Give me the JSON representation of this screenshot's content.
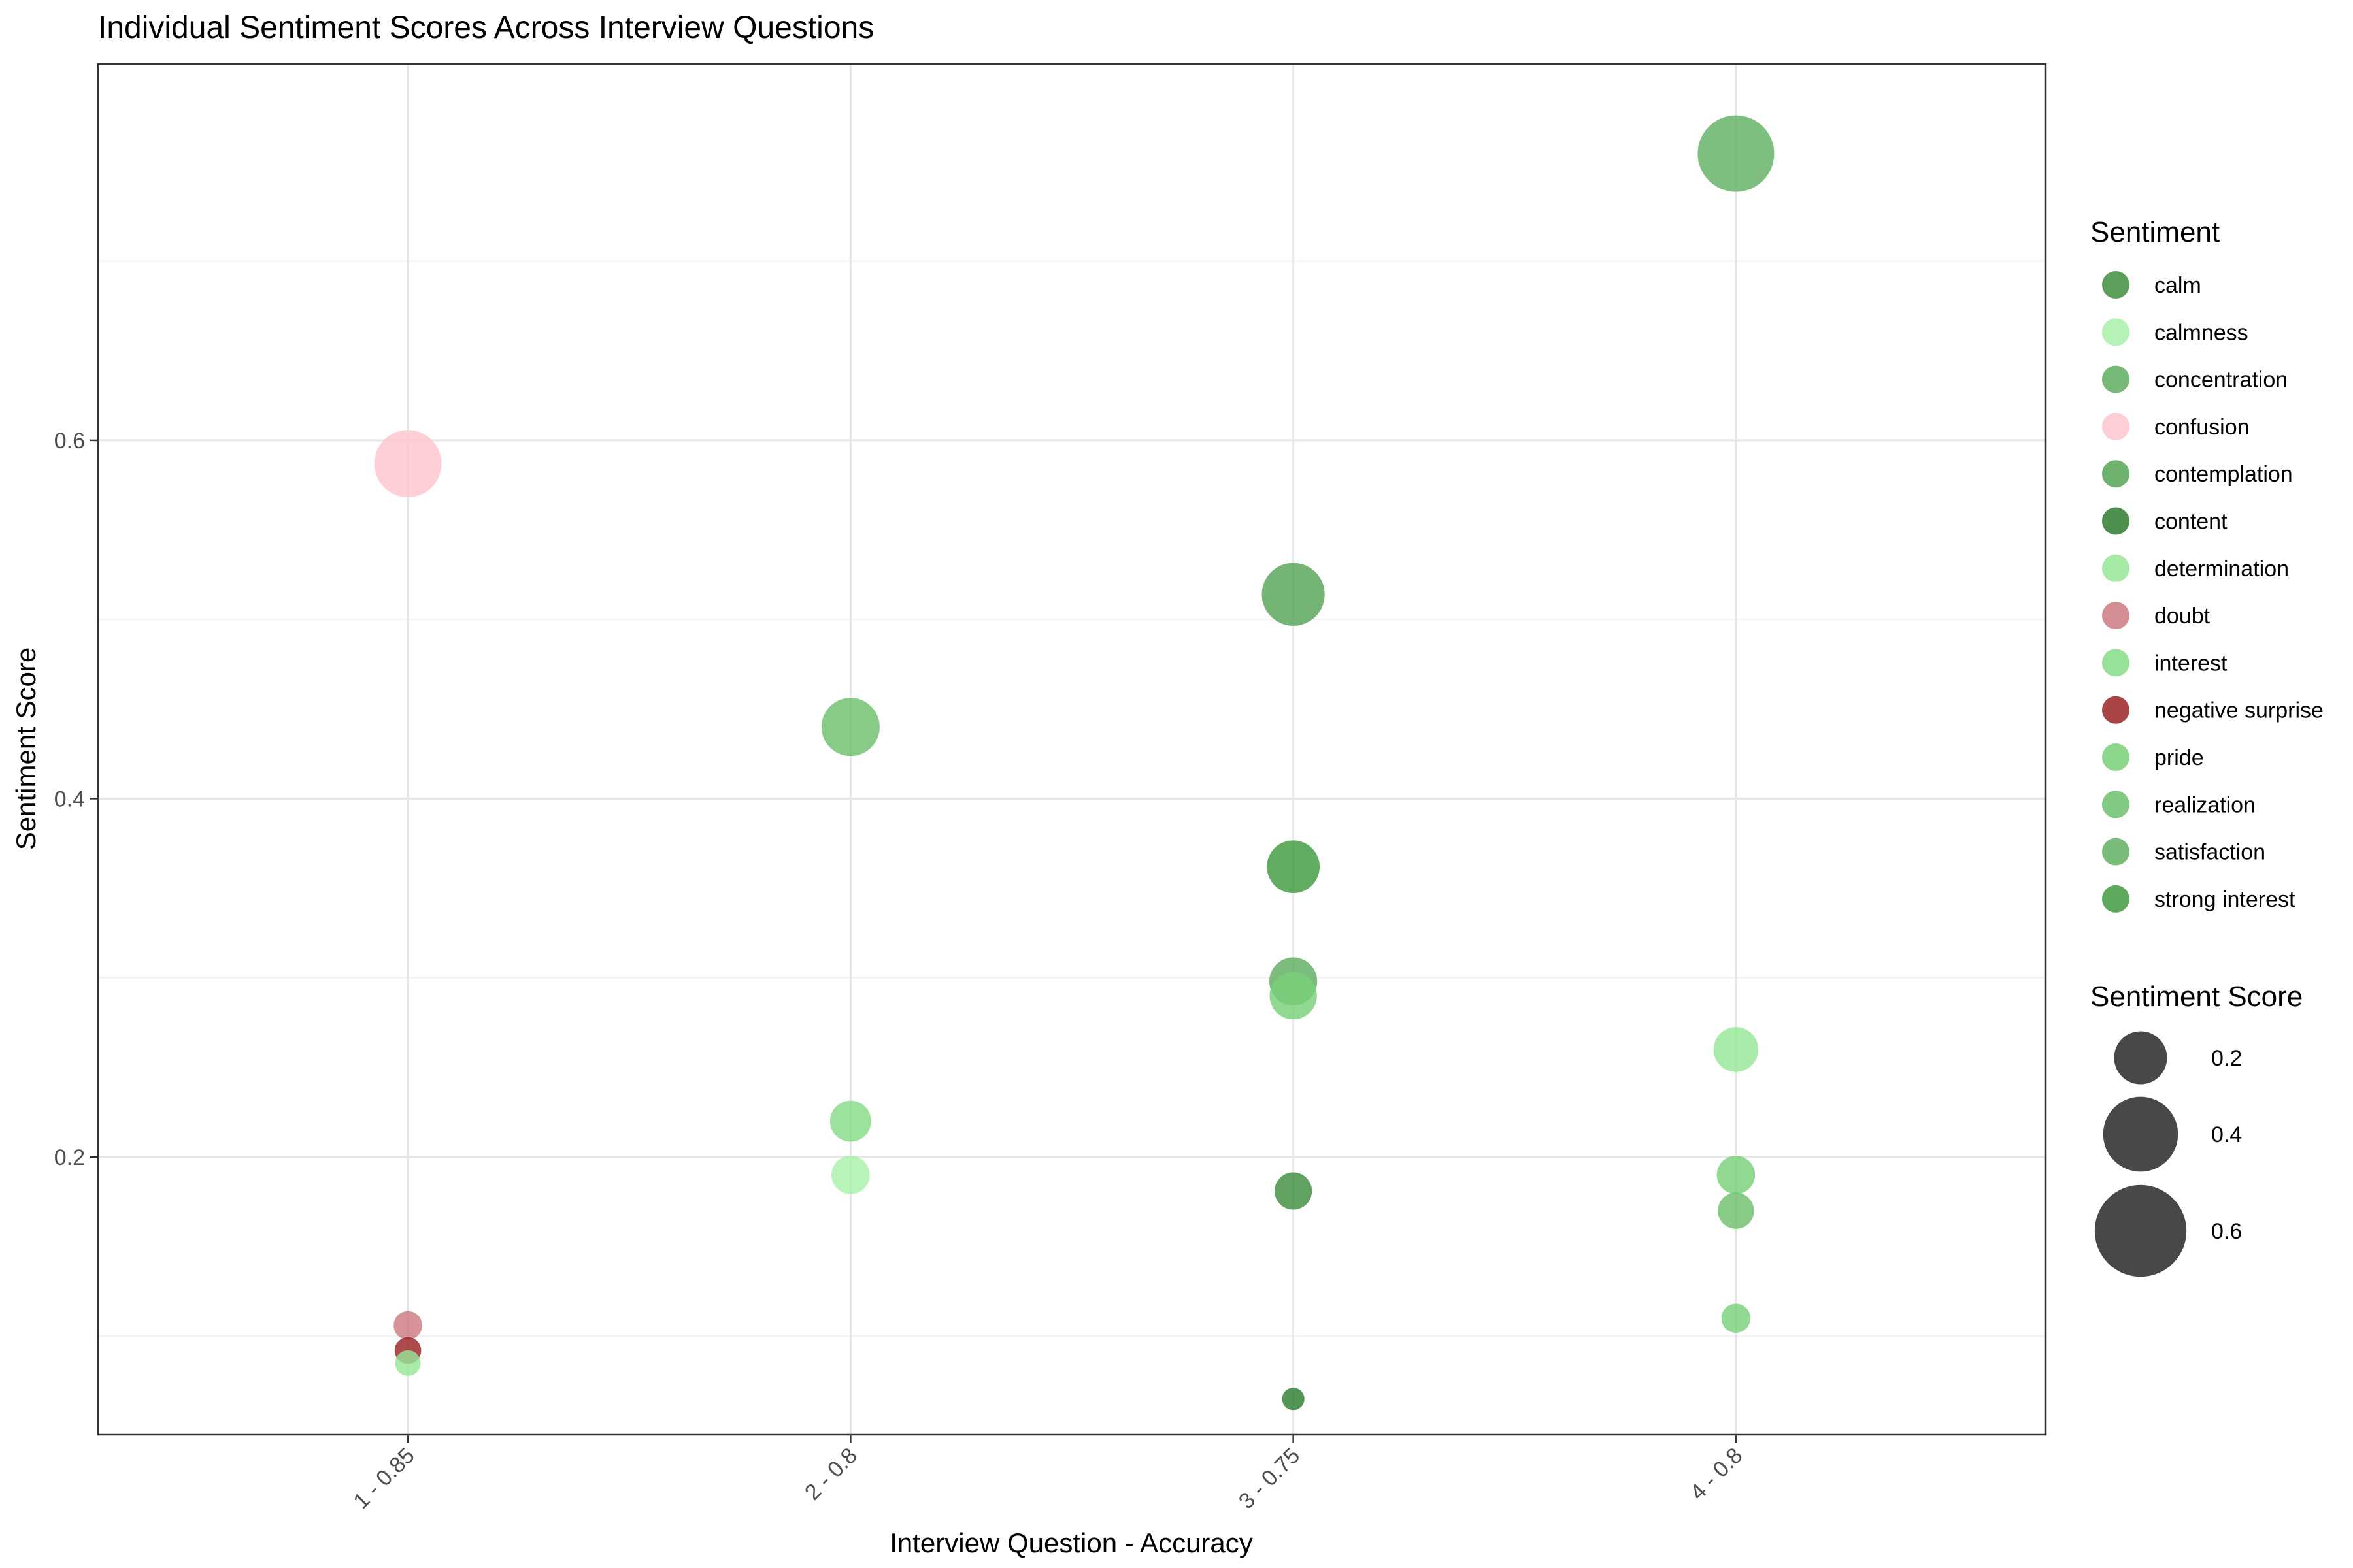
{
  "chart_data": {
    "type": "scatter",
    "title": "Individual Sentiment Scores Across Interview Questions",
    "xlabel": "Interview Question - Accuracy",
    "ylabel": "Sentiment Score",
    "categories": [
      "1 - 0.85",
      "2 - 0.8",
      "3 - 0.75",
      "4 - 0.8"
    ],
    "ylim": [
      0.045,
      0.81
    ],
    "yticks": [
      0.2,
      0.4,
      0.6
    ],
    "ytick_labels": [
      "0.2",
      "0.4",
      "0.6"
    ],
    "grid": true,
    "legend_position": "right",
    "legend_color_title": "Sentiment",
    "legend_size_title": "Sentiment Score",
    "size_legend": [
      {
        "value": 0.2,
        "label": "0.2"
      },
      {
        "value": 0.4,
        "label": "0.4"
      },
      {
        "value": 0.6,
        "label": "0.6"
      }
    ],
    "sentiments": [
      {
        "name": "calm",
        "color": "#3e8e3e"
      },
      {
        "name": "calmness",
        "color": "#a8f0a8"
      },
      {
        "name": "concentration",
        "color": "#5fad5f"
      },
      {
        "name": "confusion",
        "color": "#ffc4cf"
      },
      {
        "name": "contemplation",
        "color": "#55a455"
      },
      {
        "name": "content",
        "color": "#2e7d2e"
      },
      {
        "name": "determination",
        "color": "#96e696"
      },
      {
        "name": "doubt",
        "color": "#cd7a80"
      },
      {
        "name": "interest",
        "color": "#86dc86"
      },
      {
        "name": "negative surprise",
        "color": "#9b2226"
      },
      {
        "name": "pride",
        "color": "#79d079"
      },
      {
        "name": "realization",
        "color": "#6cc06c"
      },
      {
        "name": "satisfaction",
        "color": "#62b062"
      },
      {
        "name": "strong interest",
        "color": "#3f9a3f"
      }
    ],
    "points": [
      {
        "x": "1 - 0.85",
        "y": 0.587,
        "sentiment": "confusion"
      },
      {
        "x": "1 - 0.85",
        "y": 0.106,
        "sentiment": "doubt"
      },
      {
        "x": "1 - 0.85",
        "y": 0.085,
        "sentiment": "determination"
      },
      {
        "x": "1 - 0.85",
        "y": 0.092,
        "sentiment": "negative surprise"
      },
      {
        "x": "2 - 0.8",
        "y": 0.44,
        "sentiment": "realization"
      },
      {
        "x": "2 - 0.8",
        "y": 0.22,
        "sentiment": "interest"
      },
      {
        "x": "2 - 0.8",
        "y": 0.19,
        "sentiment": "calmness"
      },
      {
        "x": "3 - 0.75",
        "y": 0.514,
        "sentiment": "contemplation"
      },
      {
        "x": "3 - 0.75",
        "y": 0.362,
        "sentiment": "strong interest"
      },
      {
        "x": "3 - 0.75",
        "y": 0.298,
        "sentiment": "concentration"
      },
      {
        "x": "3 - 0.75",
        "y": 0.29,
        "sentiment": "pride"
      },
      {
        "x": "3 - 0.75",
        "y": 0.181,
        "sentiment": "calm"
      },
      {
        "x": "3 - 0.75",
        "y": 0.065,
        "sentiment": "content"
      },
      {
        "x": "4 - 0.8",
        "y": 0.76,
        "sentiment": "satisfaction"
      },
      {
        "x": "4 - 0.8",
        "y": 0.26,
        "sentiment": "determination"
      },
      {
        "x": "4 - 0.8",
        "y": 0.19,
        "sentiment": "pride"
      },
      {
        "x": "4 - 0.8",
        "y": 0.17,
        "sentiment": "realization"
      },
      {
        "x": "4 - 0.8",
        "y": 0.11,
        "sentiment": "pride"
      }
    ]
  }
}
